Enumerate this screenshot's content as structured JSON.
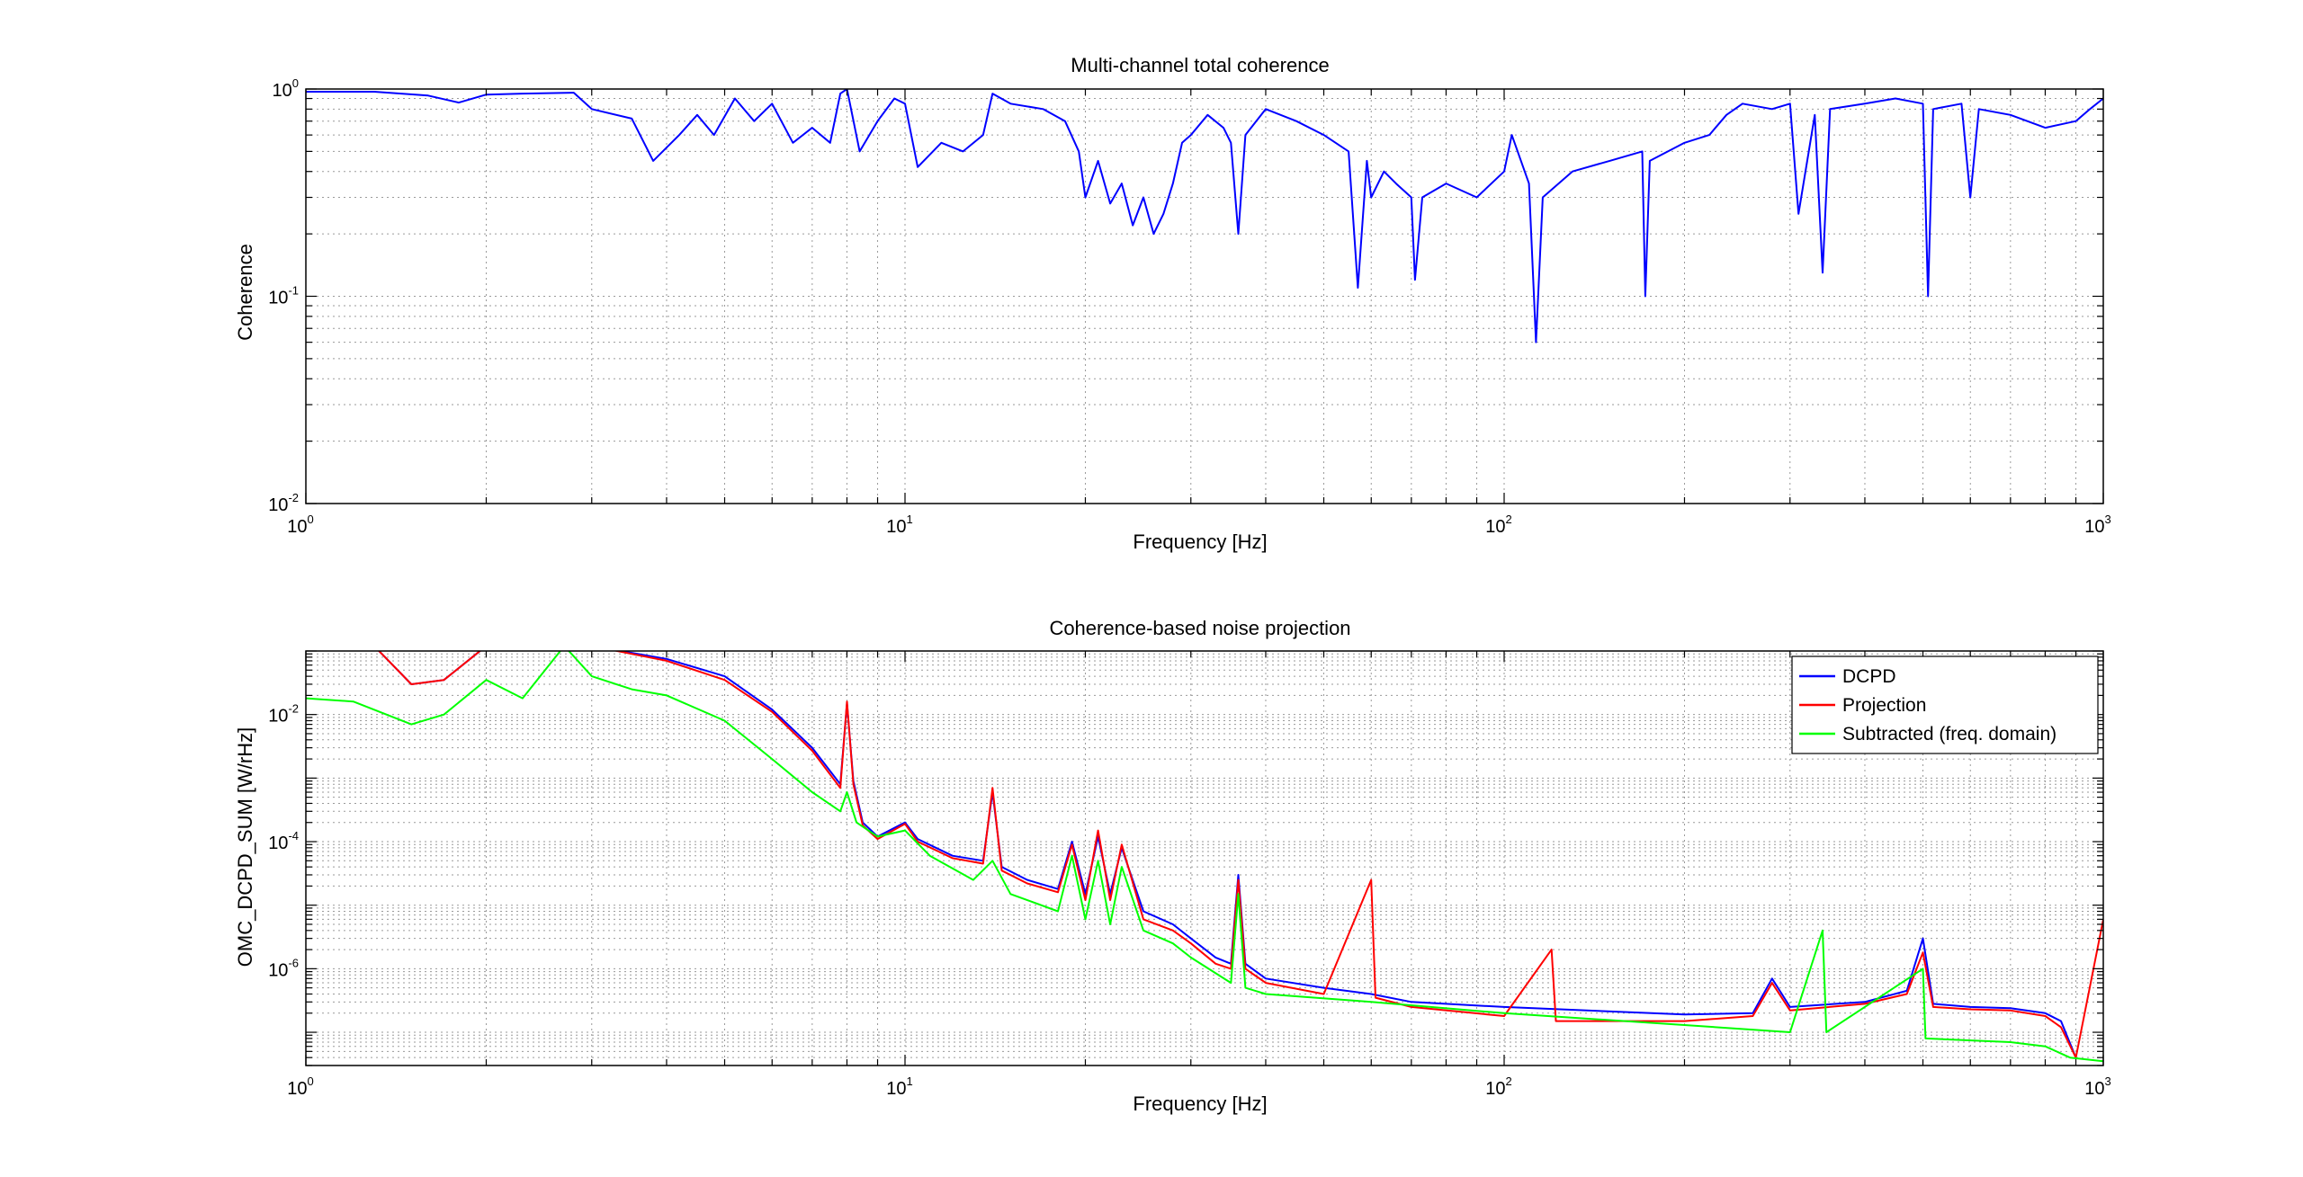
{
  "colors": {
    "dcpd": "#0000ff",
    "projection": "#ff0000",
    "subtracted": "#00ff00",
    "coherence": "#0000ff"
  },
  "chart_data": [
    {
      "type": "line",
      "title": "Multi-channel total coherence",
      "xlabel": "Frequency [Hz]",
      "ylabel": "Coherence",
      "xscale": "log",
      "yscale": "log",
      "xlim": [
        1,
        1000
      ],
      "ylim": [
        0.01,
        1
      ],
      "grid": true,
      "xticks": [
        {
          "base": "10",
          "exp": "0"
        },
        {
          "base": "10",
          "exp": "1"
        },
        {
          "base": "10",
          "exp": "2"
        },
        {
          "base": "10",
          "exp": "3"
        }
      ],
      "yticks": [
        {
          "base": "10",
          "exp": "-2"
        },
        {
          "base": "10",
          "exp": "-1"
        },
        {
          "base": "10",
          "exp": "0"
        }
      ],
      "series": [
        {
          "color": "#0000ff",
          "points": [
            [
              1,
              0.97
            ],
            [
              1.3,
              0.97
            ],
            [
              1.6,
              0.93
            ],
            [
              1.8,
              0.86
            ],
            [
              2.0,
              0.94
            ],
            [
              2.3,
              0.95
            ],
            [
              2.8,
              0.96
            ],
            [
              3.0,
              0.8
            ],
            [
              3.5,
              0.72
            ],
            [
              3.8,
              0.45
            ],
            [
              4.2,
              0.6
            ],
            [
              4.5,
              0.75
            ],
            [
              4.8,
              0.6
            ],
            [
              5.2,
              0.9
            ],
            [
              5.6,
              0.7
            ],
            [
              6.0,
              0.85
            ],
            [
              6.5,
              0.55
            ],
            [
              7.0,
              0.65
            ],
            [
              7.5,
              0.55
            ],
            [
              7.8,
              0.95
            ],
            [
              8.0,
              1.0
            ],
            [
              8.4,
              0.5
            ],
            [
              9.0,
              0.7
            ],
            [
              9.6,
              0.9
            ],
            [
              10,
              0.85
            ],
            [
              10.5,
              0.42
            ],
            [
              11.5,
              0.55
            ],
            [
              12.5,
              0.5
            ],
            [
              13.5,
              0.6
            ],
            [
              14,
              0.95
            ],
            [
              15,
              0.85
            ],
            [
              17,
              0.8
            ],
            [
              18.5,
              0.7
            ],
            [
              19.5,
              0.5
            ],
            [
              20,
              0.3
            ],
            [
              21,
              0.45
            ],
            [
              22,
              0.28
            ],
            [
              23,
              0.35
            ],
            [
              24,
              0.22
            ],
            [
              25,
              0.3
            ],
            [
              26,
              0.2
            ],
            [
              27,
              0.25
            ],
            [
              28,
              0.35
            ],
            [
              29,
              0.55
            ],
            [
              30,
              0.6
            ],
            [
              32,
              0.75
            ],
            [
              34,
              0.65
            ],
            [
              35,
              0.55
            ],
            [
              36,
              0.2
            ],
            [
              37,
              0.6
            ],
            [
              40,
              0.8
            ],
            [
              45,
              0.7
            ],
            [
              50,
              0.6
            ],
            [
              55,
              0.5
            ],
            [
              57,
              0.11
            ],
            [
              59,
              0.45
            ],
            [
              60,
              0.3
            ],
            [
              63,
              0.4
            ],
            [
              66,
              0.35
            ],
            [
              70,
              0.3
            ],
            [
              71,
              0.12
            ],
            [
              73,
              0.3
            ],
            [
              80,
              0.35
            ],
            [
              90,
              0.3
            ],
            [
              100,
              0.4
            ],
            [
              103,
              0.6
            ],
            [
              110,
              0.35
            ],
            [
              113,
              0.06
            ],
            [
              116,
              0.3
            ],
            [
              130,
              0.4
            ],
            [
              150,
              0.45
            ],
            [
              170,
              0.5
            ],
            [
              172,
              0.1
            ],
            [
              175,
              0.45
            ],
            [
              200,
              0.55
            ],
            [
              220,
              0.6
            ],
            [
              235,
              0.75
            ],
            [
              250,
              0.85
            ],
            [
              280,
              0.8
            ],
            [
              300,
              0.85
            ],
            [
              310,
              0.25
            ],
            [
              330,
              0.75
            ],
            [
              340,
              0.13
            ],
            [
              350,
              0.8
            ],
            [
              400,
              0.85
            ],
            [
              450,
              0.9
            ],
            [
              500,
              0.85
            ],
            [
              510,
              0.1
            ],
            [
              520,
              0.8
            ],
            [
              580,
              0.85
            ],
            [
              600,
              0.3
            ],
            [
              620,
              0.8
            ],
            [
              700,
              0.75
            ],
            [
              800,
              0.65
            ],
            [
              900,
              0.7
            ],
            [
              950,
              0.8
            ],
            [
              1000,
              0.9
            ]
          ]
        }
      ]
    },
    {
      "type": "line",
      "title": "Coherence-based noise projection",
      "xlabel": "Frequency [Hz]",
      "ylabel": "OMC_DCPD_SUM [W/rHz]",
      "xscale": "log",
      "yscale": "log",
      "xlim": [
        1,
        1000
      ],
      "ylim": [
        3e-08,
        0.1
      ],
      "grid": true,
      "legend_position": "top-right",
      "xticks": [
        {
          "base": "10",
          "exp": "0"
        },
        {
          "base": "10",
          "exp": "1"
        },
        {
          "base": "10",
          "exp": "2"
        },
        {
          "base": "10",
          "exp": "3"
        }
      ],
      "yticks": [
        {
          "base": "10",
          "exp": "-6"
        },
        {
          "base": "10",
          "exp": "-4"
        },
        {
          "base": "10",
          "exp": "-2"
        }
      ],
      "series": [
        {
          "name": "DCPD",
          "color": "#0000ff",
          "points": [
            [
              1.3,
              0.12
            ],
            [
              1.5,
              0.03
            ],
            [
              1.7,
              0.035
            ],
            [
              2.0,
              0.12
            ],
            [
              2.5,
              0.12
            ],
            [
              3.0,
              0.12
            ],
            [
              4.0,
              0.075
            ],
            [
              5.0,
              0.04
            ],
            [
              6.0,
              0.012
            ],
            [
              7.0,
              0.003
            ],
            [
              7.8,
              0.0008
            ],
            [
              8.0,
              0.015
            ],
            [
              8.2,
              0.0009
            ],
            [
              8.5,
              0.0002
            ],
            [
              9.0,
              0.00012
            ],
            [
              10,
              0.0002
            ],
            [
              10.5,
              0.00011
            ],
            [
              12,
              6e-05
            ],
            [
              13.5,
              5e-05
            ],
            [
              14,
              0.0006
            ],
            [
              14.5,
              4e-05
            ],
            [
              16,
              2.5e-05
            ],
            [
              18,
              1.8e-05
            ],
            [
              19,
              0.0001
            ],
            [
              20,
              1.5e-05
            ],
            [
              21,
              0.00012
            ],
            [
              22,
              1.5e-05
            ],
            [
              23,
              8e-05
            ],
            [
              25,
              8e-06
            ],
            [
              28,
              5e-06
            ],
            [
              30,
              3e-06
            ],
            [
              33,
              1.5e-06
            ],
            [
              35,
              1.2e-06
            ],
            [
              36,
              3e-05
            ],
            [
              37,
              1.2e-06
            ],
            [
              40,
              7e-07
            ],
            [
              50,
              5e-07
            ],
            [
              60,
              4e-07
            ],
            [
              70,
              3e-07
            ],
            [
              100,
              2.5e-07
            ],
            [
              200,
              1.9e-07
            ],
            [
              260,
              2e-07
            ],
            [
              280,
              7e-07
            ],
            [
              300,
              2.5e-07
            ],
            [
              400,
              3e-07
            ],
            [
              470,
              4.5e-07
            ],
            [
              500,
              3e-06
            ],
            [
              520,
              2.8e-07
            ],
            [
              600,
              2.5e-07
            ],
            [
              700,
              2.4e-07
            ],
            [
              800,
              2e-07
            ],
            [
              850,
              1.5e-07
            ],
            [
              900,
              4e-08
            ]
          ]
        },
        {
          "name": "Projection",
          "color": "#ff0000",
          "points": [
            [
              1.3,
              0.12
            ],
            [
              1.5,
              0.03
            ],
            [
              1.7,
              0.035
            ],
            [
              2.0,
              0.12
            ],
            [
              2.5,
              0.12
            ],
            [
              3.0,
              0.12
            ],
            [
              4.0,
              0.07
            ],
            [
              5.0,
              0.035
            ],
            [
              6.0,
              0.011
            ],
            [
              7.0,
              0.0027
            ],
            [
              7.8,
              0.0007
            ],
            [
              8.0,
              0.016
            ],
            [
              8.2,
              0.0008
            ],
            [
              8.5,
              0.00018
            ],
            [
              9.0,
              0.00011
            ],
            [
              10,
              0.00019
            ],
            [
              10.5,
              0.0001
            ],
            [
              12,
              5.5e-05
            ],
            [
              13.5,
              4.5e-05
            ],
            [
              14,
              0.0007
            ],
            [
              14.5,
              3.5e-05
            ],
            [
              16,
              2.2e-05
            ],
            [
              18,
              1.6e-05
            ],
            [
              19,
              9e-05
            ],
            [
              20,
              1.2e-05
            ],
            [
              21,
              0.00015
            ],
            [
              22,
              1.2e-05
            ],
            [
              23,
              9e-05
            ],
            [
              25,
              6e-06
            ],
            [
              28,
              4e-06
            ],
            [
              30,
              2.5e-06
            ],
            [
              33,
              1.2e-06
            ],
            [
              35,
              1e-06
            ],
            [
              36,
              2.5e-05
            ],
            [
              37,
              1e-06
            ],
            [
              40,
              6e-07
            ],
            [
              50,
              4e-07
            ],
            [
              60,
              2.5e-05
            ],
            [
              61,
              3.5e-07
            ],
            [
              70,
              2.5e-07
            ],
            [
              100,
              1.8e-07
            ],
            [
              120,
              2e-06
            ],
            [
              122,
              1.5e-07
            ],
            [
              200,
              1.5e-07
            ],
            [
              260,
              1.8e-07
            ],
            [
              280,
              6e-07
            ],
            [
              300,
              2.2e-07
            ],
            [
              400,
              2.8e-07
            ],
            [
              470,
              4e-07
            ],
            [
              500,
              1.8e-06
            ],
            [
              520,
              2.5e-07
            ],
            [
              600,
              2.3e-07
            ],
            [
              700,
              2.2e-07
            ],
            [
              800,
              1.8e-07
            ],
            [
              850,
              1.2e-07
            ],
            [
              900,
              4e-08
            ],
            [
              1000,
              6e-06
            ]
          ]
        },
        {
          "name": "Subtracted (freq. domain)",
          "color": "#00ff00",
          "points": [
            [
              1.0,
              0.018
            ],
            [
              1.2,
              0.016
            ],
            [
              1.5,
              0.007
            ],
            [
              1.7,
              0.01
            ],
            [
              2.0,
              0.035
            ],
            [
              2.3,
              0.018
            ],
            [
              2.7,
              0.12
            ],
            [
              3.0,
              0.04
            ],
            [
              3.5,
              0.025
            ],
            [
              4.0,
              0.02
            ],
            [
              5.0,
              0.008
            ],
            [
              6.0,
              0.002
            ],
            [
              7.0,
              0.0006
            ],
            [
              7.8,
              0.0003
            ],
            [
              8.0,
              0.0006
            ],
            [
              8.3,
              0.0002
            ],
            [
              9.0,
              0.00012
            ],
            [
              10,
              0.00015
            ],
            [
              11,
              6e-05
            ],
            [
              13,
              2.5e-05
            ],
            [
              14,
              5e-05
            ],
            [
              15,
              1.5e-05
            ],
            [
              18,
              8e-06
            ],
            [
              19,
              6e-05
            ],
            [
              20,
              6e-06
            ],
            [
              21,
              5e-05
            ],
            [
              22,
              5e-06
            ],
            [
              23,
              4e-05
            ],
            [
              25,
              4e-06
            ],
            [
              28,
              2.5e-06
            ],
            [
              30,
              1.5e-06
            ],
            [
              35,
              6e-07
            ],
            [
              36,
              1.5e-05
            ],
            [
              37,
              5e-07
            ],
            [
              40,
              4e-07
            ],
            [
              60,
              3e-07
            ],
            [
              100,
              2e-07
            ],
            [
              200,
              1.3e-07
            ],
            [
              300,
              1e-07
            ],
            [
              340,
              4e-06
            ],
            [
              345,
              1e-07
            ],
            [
              500,
              1e-06
            ],
            [
              505,
              8e-08
            ],
            [
              700,
              7e-08
            ],
            [
              800,
              6e-08
            ],
            [
              880,
              4e-08
            ],
            [
              1000,
              3.5e-08
            ]
          ]
        }
      ]
    }
  ]
}
